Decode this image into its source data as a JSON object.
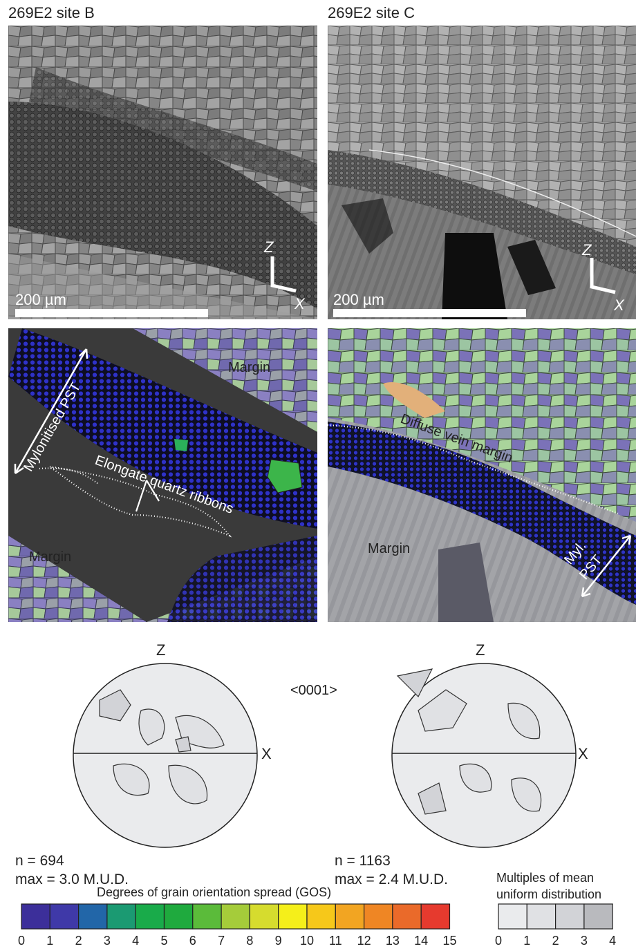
{
  "panels": {
    "site_b": {
      "title": "269E2 site B",
      "scale_bar": "200 µm",
      "axis_z": "Z",
      "axis_x": "X",
      "labels": {
        "margin_top": "Margin",
        "margin_bottom": "Margin",
        "mylonitised": "Mylonitised PST",
        "ribbons": "Elongate quartz ribbons"
      }
    },
    "site_c": {
      "title": "269E2 site C",
      "scale_bar": "200 µm",
      "axis_z": "Z",
      "axis_x": "X",
      "labels": {
        "diffuse": "Diffuse vein margin",
        "margin": "Margin",
        "myl": "Myl.",
        "pst": "PST"
      }
    }
  },
  "pole_figures": {
    "title": "<0001>",
    "left": {
      "z": "Z",
      "x": "X",
      "n": "n = 694",
      "max": "max = 3.0 M.U.D."
    },
    "right": {
      "z": "Z",
      "x": "X",
      "n": "n = 1163",
      "max": "max = 2.4 M.U.D."
    }
  },
  "gos_colorbar": {
    "title": "Degrees of grain orientation spread (GOS)",
    "ticks": [
      "0",
      "1",
      "2",
      "3",
      "4",
      "5",
      "6",
      "7",
      "8",
      "9",
      "10",
      "11",
      "12",
      "13",
      "14",
      "15"
    ],
    "colors": [
      "#3c2f9a",
      "#3f39a8",
      "#2266a8",
      "#1b9a72",
      "#19ab4a",
      "#1faa3e",
      "#5bbb3a",
      "#a5cc3a",
      "#d6dc2e",
      "#f5ef1a",
      "#f6c81a",
      "#f2a522",
      "#ef8624",
      "#ea6a2a",
      "#e63a2e"
    ]
  },
  "mud_colorbar": {
    "title_line1": "Multiples of mean",
    "title_line2": "uniform distribution",
    "ticks": [
      "0",
      "1",
      "2",
      "3",
      "4"
    ],
    "colors": [
      "#eaebed",
      "#e0e1e4",
      "#d2d3d7",
      "#b9babe"
    ]
  }
}
